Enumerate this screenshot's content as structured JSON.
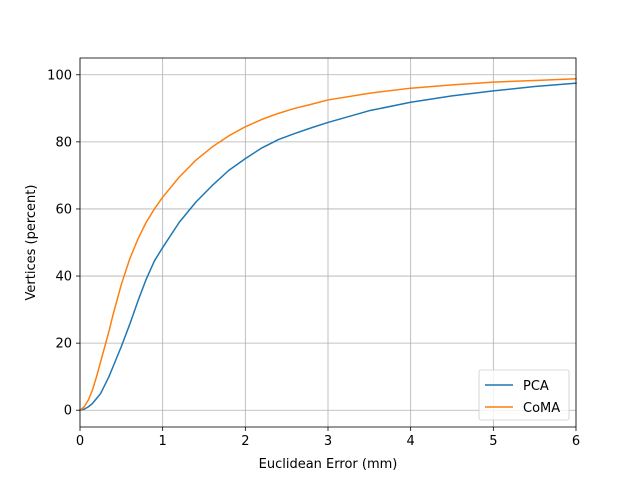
{
  "chart_data": {
    "type": "line",
    "title": "",
    "xlabel": "Euclidean Error (mm)",
    "ylabel": "Vertices (percent)",
    "xlim": [
      0,
      6
    ],
    "ylim": [
      -5,
      105
    ],
    "xticks": [
      0,
      1,
      2,
      3,
      4,
      5,
      6
    ],
    "yticks": [
      0,
      20,
      40,
      60,
      80,
      100
    ],
    "grid": true,
    "legend": "lower right",
    "series": [
      {
        "name": "PCA",
        "color": "#1f77b4",
        "x": [
          0,
          0.05,
          0.1,
          0.15,
          0.2,
          0.25,
          0.3,
          0.35,
          0.4,
          0.5,
          0.6,
          0.7,
          0.8,
          0.9,
          1.0,
          1.2,
          1.4,
          1.6,
          1.8,
          2.0,
          2.2,
          2.4,
          2.6,
          2.8,
          3.0,
          3.5,
          4.0,
          4.5,
          5.0,
          5.5,
          6.0
        ],
        "y": [
          0,
          0.3,
          1.0,
          2.0,
          3.5,
          5.0,
          7.5,
          10.0,
          13.0,
          19.0,
          25.5,
          32.5,
          39.0,
          44.5,
          48.5,
          56.0,
          62.0,
          67.0,
          71.5,
          75.0,
          78.2,
          80.7,
          82.5,
          84.2,
          85.8,
          89.3,
          91.8,
          93.7,
          95.2,
          96.5,
          97.5
        ]
      },
      {
        "name": "CoMA",
        "color": "#ff7f0e",
        "x": [
          0,
          0.05,
          0.1,
          0.15,
          0.2,
          0.25,
          0.3,
          0.35,
          0.4,
          0.5,
          0.6,
          0.7,
          0.8,
          0.9,
          1.0,
          1.2,
          1.4,
          1.6,
          1.8,
          2.0,
          2.2,
          2.4,
          2.6,
          2.8,
          3.0,
          3.5,
          4.0,
          4.5,
          5.0,
          5.5,
          6.0
        ],
        "y": [
          0,
          1.0,
          3.0,
          6.0,
          10.0,
          14.5,
          19.0,
          23.5,
          28.5,
          37.5,
          45.0,
          51.0,
          56.0,
          60.0,
          63.5,
          69.5,
          74.5,
          78.5,
          81.8,
          84.5,
          86.7,
          88.5,
          90.0,
          91.2,
          92.5,
          94.5,
          96.0,
          97.0,
          97.8,
          98.3,
          98.8
        ]
      }
    ]
  }
}
